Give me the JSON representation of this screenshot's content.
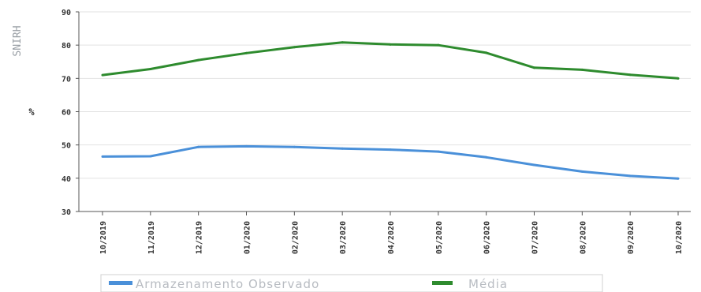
{
  "chart_data": {
    "type": "line",
    "watermark": "SNIRH",
    "ylabel": "%",
    "xlabel": "",
    "ylim": [
      30,
      90
    ],
    "yticks": [
      30,
      40,
      50,
      60,
      70,
      80,
      90
    ],
    "categories": [
      "10/2019",
      "11/2019",
      "12/2019",
      "01/2020",
      "02/2020",
      "03/2020",
      "04/2020",
      "05/2020",
      "06/2020",
      "07/2020",
      "08/2020",
      "09/2020",
      "10/2020"
    ],
    "series": [
      {
        "name": "Armazenamento Observado",
        "color": "#4a90d9",
        "values": [
          46.5,
          46.6,
          49.4,
          49.6,
          49.4,
          48.9,
          48.6,
          48.0,
          46.3,
          44.0,
          42.0,
          40.7,
          39.9
        ]
      },
      {
        "name": "Média",
        "color": "#2e8b2e",
        "values": [
          71.0,
          72.8,
          75.5,
          77.6,
          79.4,
          80.8,
          80.2,
          80.0,
          77.7,
          73.2,
          72.6,
          71.1,
          70.0
        ]
      }
    ],
    "grid": true,
    "legend_position": "bottom"
  }
}
